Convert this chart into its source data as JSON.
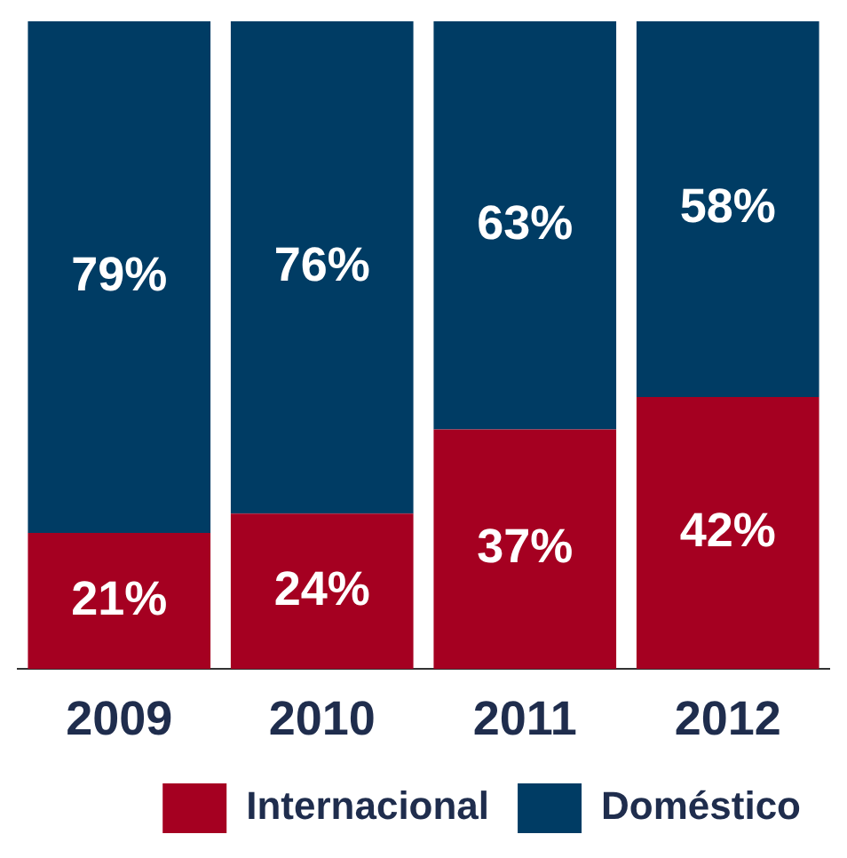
{
  "chart_data": {
    "type": "bar",
    "categories": [
      "2009",
      "2010",
      "2011",
      "2012"
    ],
    "series": [
      {
        "name": "Internacional",
        "color": "#a50021",
        "values": [
          21,
          24,
          37,
          42
        ],
        "value_labels": [
          "21%",
          "24%",
          "37%",
          "42%"
        ]
      },
      {
        "name": "Doméstico",
        "color": "#003c64",
        "values": [
          79,
          76,
          63,
          58
        ],
        "value_labels": [
          "79%",
          "76%",
          "63%",
          "58%"
        ]
      }
    ],
    "stacked": true,
    "legend": "bottom right",
    "grid": false,
    "tick_labels": "x"
  }
}
